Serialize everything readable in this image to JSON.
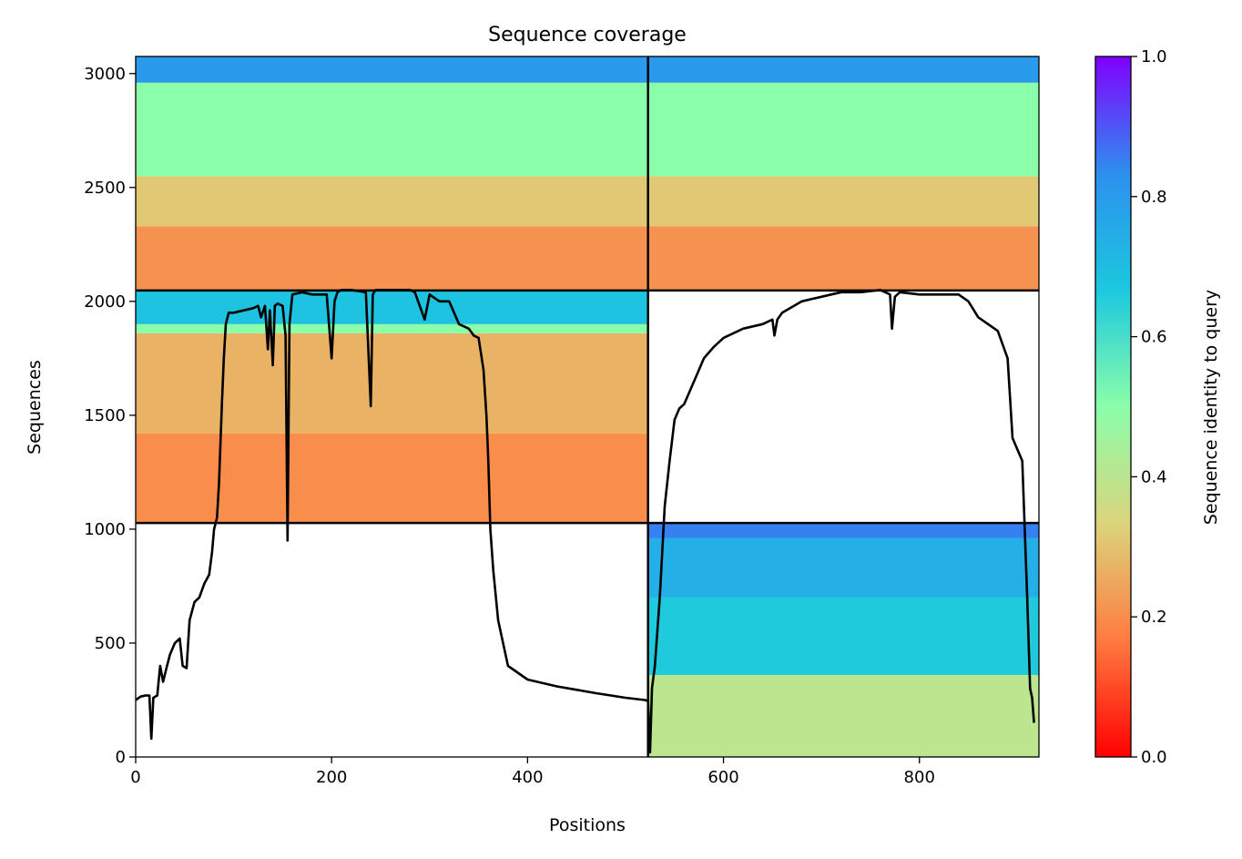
{
  "chart_data": {
    "type": "heatmap",
    "title": "Sequence coverage",
    "xlabel": "Positions",
    "ylabel": "Sequences",
    "xlim": [
      0,
      922
    ],
    "ylim": [
      0,
      3075
    ],
    "xticks": [
      0,
      200,
      400,
      600,
      800
    ],
    "yticks": [
      0,
      500,
      1000,
      1500,
      2000,
      2500,
      3000
    ],
    "grid": false,
    "colorbar": {
      "label": "Sequence identity to query",
      "range": [
        0,
        1
      ],
      "ticks": [
        0.0,
        0.2,
        0.4,
        0.6,
        0.8,
        1.0
      ],
      "tick_labels": [
        "0.0",
        "0.2",
        "0.4",
        "0.6",
        "0.8",
        "1.0"
      ],
      "colormap": "rainbow_r",
      "stops": [
        "#ff0000",
        "#ff7b40",
        "#dbd47c",
        "#8bfeaa",
        "#1cc8df",
        "#2e8fef",
        "#8000ff"
      ]
    },
    "chain_boundaries": {
      "positions": [
        523
      ],
      "sequences": [
        1027,
        2048
      ]
    },
    "coverage_blocks": [
      {
        "x": [
          523,
          922
        ],
        "y": [
          0,
          1027
        ],
        "bands": [
          {
            "y": [
              0,
              360
            ],
            "identity": 0.4
          },
          {
            "y": [
              360,
              700
            ],
            "identity": 0.66
          },
          {
            "y": [
              700,
              960
            ],
            "identity": 0.74
          },
          {
            "y": [
              960,
              1027
            ],
            "identity": 0.85
          }
        ]
      },
      {
        "x": [
          0,
          523
        ],
        "y": [
          1027,
          2048
        ],
        "bands": [
          {
            "y": [
              1027,
              1420
            ],
            "identity": 0.2
          },
          {
            "y": [
              1420,
              1860
            ],
            "identity": 0.27
          },
          {
            "y": [
              1860,
              1900
            ],
            "identity": 0.5
          },
          {
            "y": [
              1900,
              2048
            ],
            "identity": 0.68
          }
        ]
      },
      {
        "x": [
          0,
          523
        ],
        "y": [
          2048,
          3075
        ],
        "bands": [
          {
            "y": [
              2048,
              2330
            ],
            "identity": 0.21
          },
          {
            "y": [
              2330,
              2550
            ],
            "identity": 0.31
          },
          {
            "y": [
              2550,
              2960
            ],
            "identity": 0.5
          },
          {
            "y": [
              2960,
              3075
            ],
            "identity": 0.8
          }
        ]
      },
      {
        "x": [
          523,
          922
        ],
        "y": [
          2048,
          3075
        ],
        "bands": [
          {
            "y": [
              2048,
              2330
            ],
            "identity": 0.21
          },
          {
            "y": [
              2330,
              2550
            ],
            "identity": 0.31
          },
          {
            "y": [
              2550,
              2960
            ],
            "identity": 0.5
          },
          {
            "y": [
              2960,
              3075
            ],
            "identity": 0.8
          }
        ]
      }
    ],
    "coverage_line": {
      "x": [
        0,
        5,
        10,
        14,
        16,
        18,
        22,
        25,
        28,
        32,
        35,
        40,
        45,
        48,
        52,
        55,
        60,
        65,
        70,
        75,
        78,
        80,
        83,
        85,
        88,
        90,
        92,
        95,
        100,
        110,
        120,
        125,
        128,
        132,
        135,
        137,
        140,
        142,
        145,
        150,
        153,
        155,
        157,
        160,
        170,
        180,
        195,
        200,
        203,
        206,
        210,
        220,
        235,
        240,
        242,
        245,
        250,
        260,
        280,
        285,
        295,
        300,
        310,
        320,
        330,
        340,
        345,
        350,
        355,
        358,
        360,
        362,
        365,
        370,
        380,
        400,
        430,
        470,
        500,
        520,
        523,
        525,
        527,
        530,
        535,
        540,
        545,
        550,
        555,
        560,
        565,
        570,
        575,
        580,
        590,
        600,
        620,
        640,
        650,
        652,
        655,
        660,
        680,
        700,
        720,
        740,
        760,
        770,
        772,
        775,
        780,
        800,
        820,
        840,
        850,
        860,
        870,
        880,
        890,
        895,
        900,
        905,
        910,
        913,
        915,
        917,
        920
      ],
      "y": [
        250,
        265,
        270,
        270,
        80,
        260,
        270,
        400,
        330,
        400,
        450,
        500,
        520,
        400,
        390,
        600,
        680,
        700,
        760,
        800,
        900,
        1000,
        1050,
        1200,
        1550,
        1750,
        1900,
        1950,
        1950,
        1960,
        1970,
        1980,
        1930,
        1980,
        1790,
        1960,
        1720,
        1980,
        1990,
        1980,
        1850,
        950,
        1900,
        2030,
        2040,
        2030,
        2030,
        1750,
        2000,
        2040,
        2050,
        2050,
        2040,
        1540,
        2030,
        2050,
        2050,
        2050,
        2050,
        2040,
        1920,
        2030,
        2000,
        2000,
        1900,
        1880,
        1850,
        1840,
        1700,
        1500,
        1300,
        1000,
        820,
        600,
        400,
        340,
        310,
        280,
        260,
        250,
        245,
        20,
        300,
        400,
        700,
        1100,
        1300,
        1480,
        1530,
        1550,
        1600,
        1650,
        1700,
        1750,
        1800,
        1840,
        1880,
        1900,
        1920,
        1850,
        1920,
        1950,
        2000,
        2020,
        2040,
        2040,
        2050,
        2030,
        1880,
        2020,
        2040,
        2030,
        2030,
        2030,
        2000,
        1930,
        1900,
        1870,
        1750,
        1400,
        1350,
        1300,
        700,
        300,
        260,
        150
      ]
    }
  }
}
